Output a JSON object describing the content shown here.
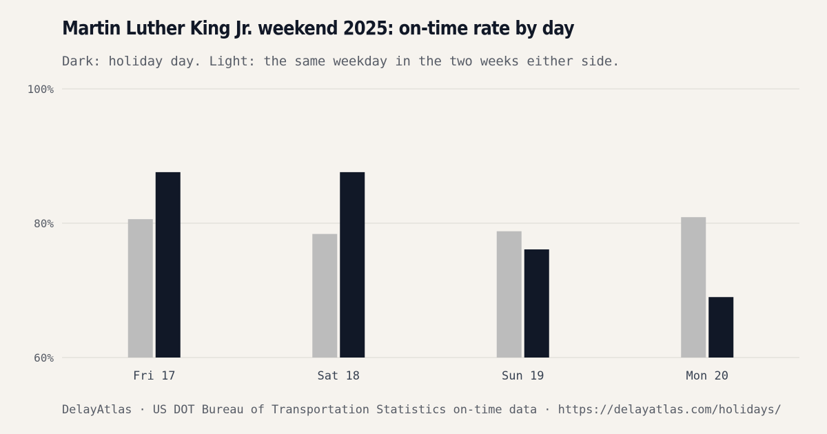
{
  "title": "Martin Luther King Jr. weekend 2025: on-time rate by day",
  "subtitle": "Dark: holiday day. Light: the same weekday in the two weeks either side.",
  "footer": "DelayAtlas · US DOT Bureau of Transportation Statistics on-time data · https://delayatlas.com/holidays/",
  "colors": {
    "background": "#f6f3ee",
    "holiday": "#111827",
    "baseline": "#bcbcbc",
    "grid": "#e4e1dc"
  },
  "chart_data": {
    "type": "bar",
    "categories": [
      "Fri 17",
      "Sat 18",
      "Sun 19",
      "Mon 20"
    ],
    "series": [
      {
        "key": "baseline",
        "values": [
          80.6,
          78.4,
          78.8,
          80.9
        ]
      },
      {
        "key": "holiday",
        "values": [
          87.6,
          87.6,
          76.1,
          69.0
        ]
      }
    ],
    "ylim": [
      60,
      100
    ],
    "yticks": [
      60,
      80,
      100
    ],
    "ytick_labels": [
      "60%",
      "80%",
      "100%"
    ],
    "grid": true,
    "legend": "none"
  }
}
